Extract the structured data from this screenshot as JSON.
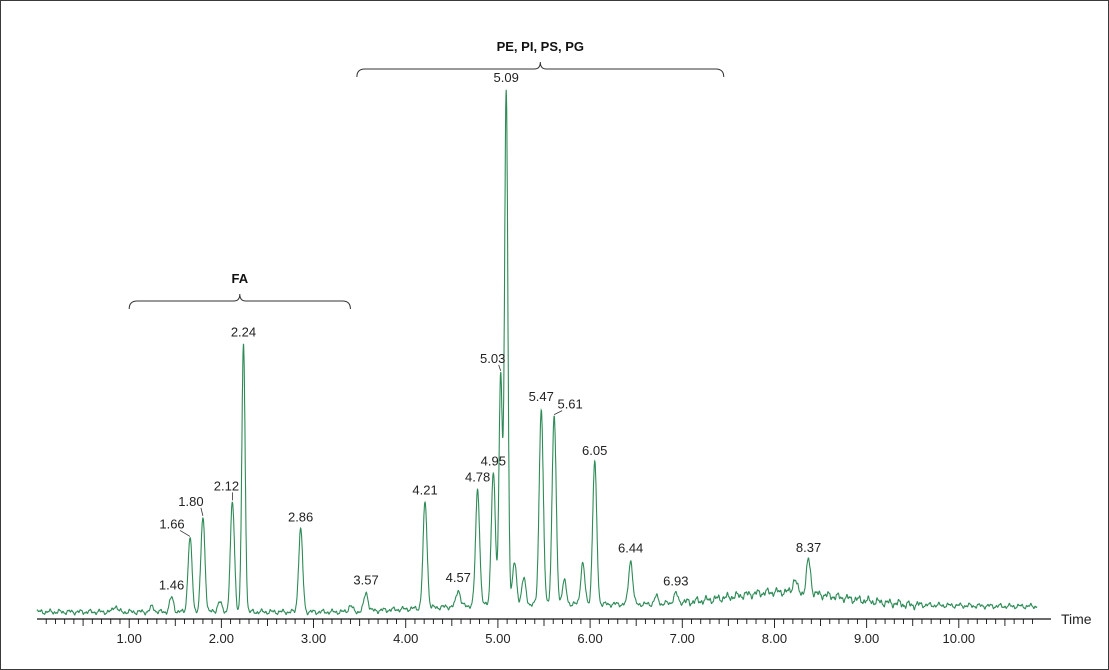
{
  "chart_data": {
    "type": "line",
    "xlabel": "Time",
    "xlim": [
      0.0,
      11.0
    ],
    "ylim": [
      0,
      100
    ],
    "x_ticks": [
      "1.00",
      "2.00",
      "3.00",
      "4.00",
      "5.00",
      "6.00",
      "7.00",
      "8.00",
      "9.00",
      "10.00"
    ],
    "line_color": "#2e8b57",
    "peaks": [
      {
        "rt": 1.46,
        "label": "1.46",
        "height": 2.8
      },
      {
        "rt": 1.66,
        "label": "1.66",
        "height": 14.3
      },
      {
        "rt": 1.8,
        "label": "1.80",
        "height": 18.3
      },
      {
        "rt": 2.12,
        "label": "2.12",
        "height": 21.3
      },
      {
        "rt": 2.24,
        "label": "2.24",
        "height": 52.0
      },
      {
        "rt": 2.86,
        "label": "2.86",
        "height": 16.0
      },
      {
        "rt": 3.57,
        "label": "3.57",
        "height": 3.6
      },
      {
        "rt": 4.21,
        "label": "4.21",
        "height": 20.5
      },
      {
        "rt": 4.57,
        "label": "4.57",
        "height": 3.2
      },
      {
        "rt": 4.78,
        "label": "4.78",
        "height": 22.5
      },
      {
        "rt": 4.95,
        "label": "4.95",
        "height": 25.5
      },
      {
        "rt": 5.03,
        "label": "5.03",
        "height": 45.0
      },
      {
        "rt": 5.09,
        "label": "5.09",
        "height": 100.0
      },
      {
        "rt": 5.47,
        "label": "5.47",
        "height": 38.0
      },
      {
        "rt": 5.61,
        "label": "5.61",
        "height": 36.5
      },
      {
        "rt": 6.05,
        "label": "6.05",
        "height": 27.5
      },
      {
        "rt": 6.44,
        "label": "6.44",
        "height": 8.5
      },
      {
        "rt": 6.93,
        "label": "6.93",
        "height": 1.8
      },
      {
        "rt": 8.37,
        "label": "8.37",
        "height": 6.5
      }
    ],
    "minor_peaks": [
      {
        "rt": 0.85,
        "height": 1.2
      },
      {
        "rt": 1.25,
        "height": 1.0
      },
      {
        "rt": 1.98,
        "height": 2.0
      },
      {
        "rt": 3.4,
        "height": 1.2
      },
      {
        "rt": 5.18,
        "height": 8.0
      },
      {
        "rt": 5.28,
        "height": 5.0
      },
      {
        "rt": 5.72,
        "height": 4.5
      },
      {
        "rt": 5.92,
        "height": 8.0
      },
      {
        "rt": 6.72,
        "height": 1.5
      },
      {
        "rt": 8.22,
        "height": 2.5
      }
    ],
    "groups": [
      {
        "label": "FA",
        "x_start": 1.0,
        "x_end": 3.4
      },
      {
        "label": "PE, PI, PS, PG",
        "x_start": 3.47,
        "x_end": 7.45
      }
    ]
  }
}
